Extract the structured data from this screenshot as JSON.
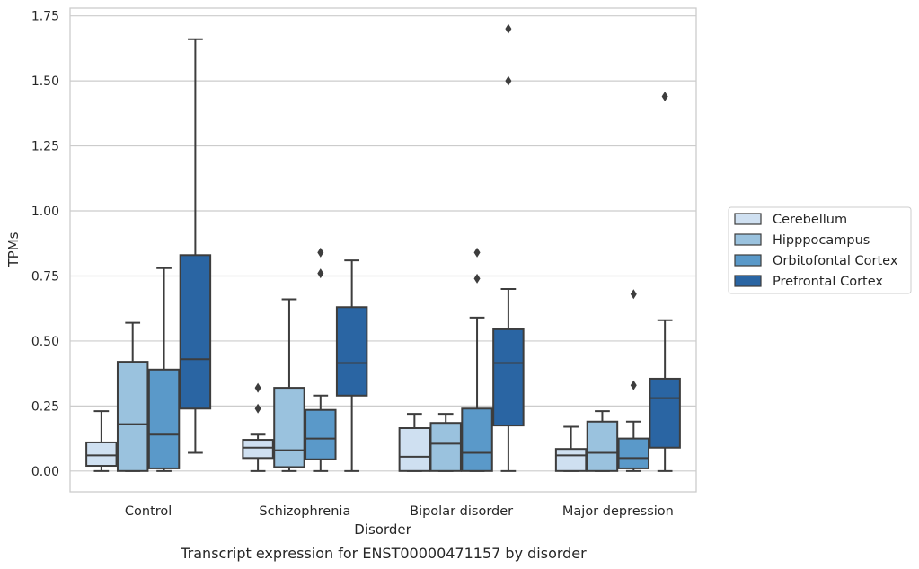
{
  "chart_data": {
    "type": "box",
    "xlabel": "Disorder",
    "ylabel": "TPMs",
    "caption": "Transcript expression for ENST00000471157 by disorder",
    "categories": [
      "Control",
      "Schizophrenia",
      "Bipolar disorder",
      "Major depression"
    ],
    "ylim": [
      -0.08,
      1.78
    ],
    "yticks": [
      "0.00",
      "0.25",
      "0.50",
      "0.75",
      "1.00",
      "1.25",
      "1.50",
      "1.75"
    ],
    "ytick_values": [
      0,
      0.25,
      0.5,
      0.75,
      1.0,
      1.25,
      1.5,
      1.75
    ],
    "grid": "horizontal",
    "legend_position": "center-right",
    "series": [
      {
        "name": "Cerebellum",
        "color": "#cfe0f1",
        "boxes": [
          {
            "whislo": 0.0,
            "q1": 0.02,
            "med": 0.06,
            "q3": 0.11,
            "whishi": 0.23,
            "fliers": []
          },
          {
            "whislo": 0.0,
            "q1": 0.05,
            "med": 0.09,
            "q3": 0.12,
            "whishi": 0.14,
            "fliers": [
              0.24,
              0.32
            ]
          },
          {
            "whislo": 0.0,
            "q1": 0.0,
            "med": 0.055,
            "q3": 0.165,
            "whishi": 0.22,
            "fliers": []
          },
          {
            "whislo": 0.0,
            "q1": 0.0,
            "med": 0.06,
            "q3": 0.085,
            "whishi": 0.17,
            "fliers": []
          }
        ]
      },
      {
        "name": "Hipppocampus",
        "color": "#9ac2de",
        "boxes": [
          {
            "whislo": 0.0,
            "q1": 0.0,
            "med": 0.18,
            "q3": 0.42,
            "whishi": 0.57,
            "fliers": []
          },
          {
            "whislo": 0.0,
            "q1": 0.015,
            "med": 0.08,
            "q3": 0.32,
            "whishi": 0.66,
            "fliers": []
          },
          {
            "whislo": 0.0,
            "q1": 0.0,
            "med": 0.105,
            "q3": 0.185,
            "whishi": 0.22,
            "fliers": []
          },
          {
            "whislo": 0.0,
            "q1": 0.0,
            "med": 0.07,
            "q3": 0.19,
            "whishi": 0.23,
            "fliers": []
          }
        ]
      },
      {
        "name": "Orbitofontal Cortex",
        "color": "#5a99c9",
        "boxes": [
          {
            "whislo": 0.0,
            "q1": 0.01,
            "med": 0.14,
            "q3": 0.39,
            "whishi": 0.78,
            "fliers": []
          },
          {
            "whislo": 0.0,
            "q1": 0.045,
            "med": 0.125,
            "q3": 0.235,
            "whishi": 0.29,
            "fliers": [
              0.76,
              0.84
            ]
          },
          {
            "whislo": 0.0,
            "q1": 0.0,
            "med": 0.07,
            "q3": 0.24,
            "whishi": 0.59,
            "fliers": [
              0.74,
              0.84
            ]
          },
          {
            "whislo": 0.0,
            "q1": 0.01,
            "med": 0.05,
            "q3": 0.125,
            "whishi": 0.19,
            "fliers": [
              0.33,
              0.68
            ]
          }
        ]
      },
      {
        "name": "Prefrontal Cortex",
        "color": "#2a65a3",
        "boxes": [
          {
            "whislo": 0.07,
            "q1": 0.24,
            "med": 0.43,
            "q3": 0.83,
            "whishi": 1.66,
            "fliers": []
          },
          {
            "whislo": 0.0,
            "q1": 0.29,
            "med": 0.415,
            "q3": 0.63,
            "whishi": 0.81,
            "fliers": []
          },
          {
            "whislo": 0.0,
            "q1": 0.175,
            "med": 0.415,
            "q3": 0.545,
            "whishi": 0.7,
            "fliers": [
              1.5,
              1.7
            ]
          },
          {
            "whislo": 0.0,
            "q1": 0.09,
            "med": 0.28,
            "q3": 0.355,
            "whishi": 0.58,
            "fliers": [
              1.44
            ]
          }
        ]
      }
    ]
  }
}
